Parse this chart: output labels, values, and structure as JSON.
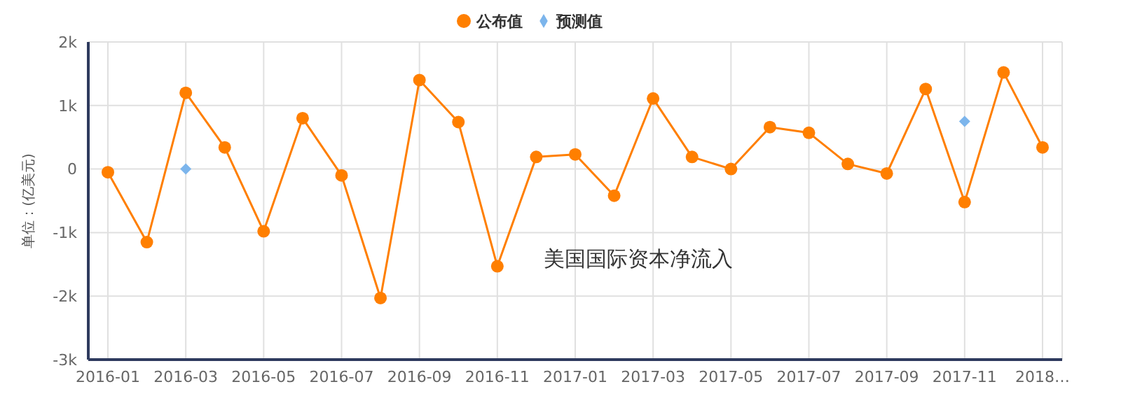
{
  "chart_data": {
    "type": "line",
    "ylabel": "单位：(亿美元)",
    "annotations": [
      "美国国际资本净流入"
    ],
    "categories": [
      "2016-01",
      null,
      "2016-03",
      null,
      "2016-05",
      null,
      "2016-07",
      null,
      "2016-09",
      null,
      "2016-11",
      null,
      "2017-01",
      null,
      "2017-03",
      null,
      "2017-05",
      null,
      "2017-07",
      null,
      "2017-09",
      null,
      "2017-11",
      null,
      "2018…"
    ],
    "series": [
      {
        "name": "公布值",
        "color": "#ff7f00",
        "marker": "circle",
        "values": [
          -50,
          -1150,
          1200,
          340,
          -980,
          800,
          -100,
          -2030,
          1400,
          740,
          -1530,
          190,
          230,
          -420,
          1110,
          190,
          0,
          660,
          570,
          80,
          -70,
          1260,
          -520,
          1520,
          340
        ]
      },
      {
        "name": "预测值",
        "type": "scatter",
        "color": "#7cb5ec",
        "marker": "diamond",
        "values": [
          null,
          null,
          0,
          null,
          null,
          null,
          null,
          null,
          null,
          null,
          null,
          null,
          null,
          null,
          null,
          null,
          null,
          null,
          null,
          null,
          null,
          null,
          750,
          null,
          null
        ]
      }
    ],
    "ylim": [
      -3000,
      2000
    ],
    "yticks": [
      {
        "value": -3000,
        "label": "-3k"
      },
      {
        "value": -2000,
        "label": "-2k"
      },
      {
        "value": -1000,
        "label": "-1k"
      },
      0,
      {
        "value": 1000,
        "label": "1k"
      },
      {
        "value": 2000,
        "label": "2k"
      }
    ],
    "grid": true,
    "legend": "top"
  }
}
